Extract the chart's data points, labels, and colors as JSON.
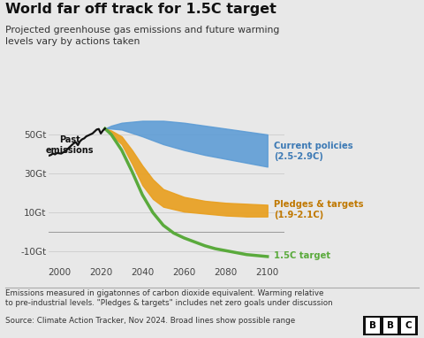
{
  "title": "World far off track for 1.5C target",
  "subtitle": "Projected greenhouse gas emissions and future warming\nlevels vary by actions taken",
  "footnote1": "Emissions measured in gigatonnes of carbon dioxide equivalent. Warming relative\nto pre-industrial levels. \"Pledges & targets\" includes net zero goals under discussion",
  "footnote2": "Source: Climate Action Tracker, Nov 2024. Broad lines show possible range",
  "bg_color": "#e8e8e8",
  "plot_bg_color": "#e8e8e8",
  "ylabel_ticks": [
    "50Gt",
    "30Gt",
    "10Gt",
    "-10Gt"
  ],
  "ytick_vals": [
    50,
    30,
    10,
    -10
  ],
  "xlim": [
    1995,
    2108
  ],
  "ylim": [
    -17,
    60
  ],
  "past_emissions_color": "#111111",
  "current_policies_color": "#5b9bd5",
  "pledges_color": "#e8a020",
  "target_color": "#5aaa3c",
  "label_current_color": "#3d7ab5",
  "label_pledges_color": "#c07800",
  "label_current": "Current policies\n(2.5-2.9C)",
  "label_pledges": "Pledges & targets\n(1.9-2.1C)",
  "label_target": "1.5C target",
  "label_past": "Past\nemissions",
  "past_years": [
    1990,
    1992,
    1994,
    1996,
    1997,
    1998,
    1999,
    2001,
    2003,
    2004,
    2005,
    2007,
    2008,
    2009,
    2010,
    2011,
    2012,
    2013,
    2014,
    2015,
    2016,
    2017,
    2018,
    2019,
    2020,
    2021,
    2022
  ],
  "past_vals": [
    38.5,
    39.0,
    38.8,
    39.5,
    40.2,
    39.8,
    40.5,
    40.2,
    41.5,
    42.5,
    43.5,
    45.5,
    46.0,
    44.5,
    46.5,
    47.5,
    48.0,
    49.0,
    49.5,
    50.0,
    50.5,
    51.5,
    52.5,
    52.8,
    50.5,
    52.0,
    53.0
  ],
  "cp_years": [
    2022,
    2025,
    2030,
    2040,
    2050,
    2060,
    2070,
    2080,
    2090,
    2100
  ],
  "cp_upper": [
    53.0,
    54.5,
    56.0,
    57.0,
    57.0,
    56.0,
    54.5,
    53.0,
    51.5,
    50.0
  ],
  "cp_lower": [
    53.0,
    53.0,
    52.5,
    49.0,
    45.0,
    42.0,
    39.5,
    37.5,
    35.5,
    33.5
  ],
  "pt_years": [
    2022,
    2025,
    2030,
    2035,
    2040,
    2045,
    2050,
    2060,
    2070,
    2080,
    2090,
    2100
  ],
  "pt_upper": [
    53.0,
    52.0,
    49.0,
    42.0,
    34.0,
    27.0,
    22.0,
    18.0,
    16.0,
    15.0,
    14.5,
    14.0
  ],
  "pt_lower": [
    53.0,
    50.0,
    45.0,
    35.0,
    24.0,
    17.0,
    13.0,
    10.5,
    9.5,
    8.5,
    8.0,
    8.0
  ],
  "t15_years": [
    2022,
    2025,
    2030,
    2035,
    2040,
    2045,
    2050,
    2055,
    2060,
    2065,
    2070,
    2075,
    2080,
    2090,
    2095,
    2100
  ],
  "t15_vals": [
    53.0,
    50.0,
    42.0,
    31.0,
    19.0,
    10.0,
    3.5,
    -0.5,
    -3.0,
    -5.0,
    -7.0,
    -8.5,
    -9.5,
    -11.5,
    -12.0,
    -12.5
  ]
}
